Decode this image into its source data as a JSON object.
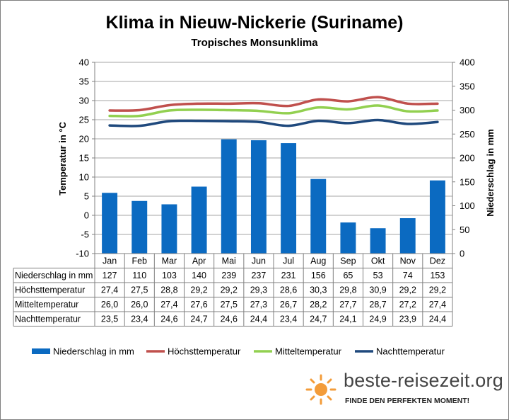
{
  "page": {
    "title": "Klima in Nieuw-Nickerie (Suriname)",
    "subtitle": "Tropisches Monsunklima"
  },
  "chart_data": {
    "type": "bar+line",
    "categories": [
      "Jan",
      "Feb",
      "Mar",
      "Apr",
      "Mai",
      "Jun",
      "Jul",
      "Aug",
      "Sep",
      "Okt",
      "Nov",
      "Dez"
    ],
    "y_left": {
      "label": "Temperatur in °C",
      "min": -10,
      "max": 40,
      "ticks": [
        -10,
        -5,
        0,
        5,
        10,
        15,
        20,
        25,
        30,
        35,
        40
      ]
    },
    "y_right": {
      "label": "Niederschlag in mm",
      "min": 0,
      "max": 400,
      "ticks": [
        0,
        50,
        100,
        150,
        200,
        250,
        300,
        350,
        400
      ]
    },
    "bars": {
      "name": "Niederschlag in mm",
      "axis": "right",
      "color": "#0b6ac1",
      "values": [
        127,
        110,
        103,
        140,
        239,
        237,
        231,
        156,
        65,
        53,
        74,
        153
      ]
    },
    "lines": [
      {
        "name": "Höchsttemperatur",
        "color": "#c0504d",
        "values": [
          27.4,
          27.5,
          28.8,
          29.2,
          29.2,
          29.3,
          28.6,
          30.3,
          29.8,
          30.9,
          29.2,
          29.2
        ]
      },
      {
        "name": "Mitteltemperatur",
        "color": "#92d050",
        "values": [
          26.0,
          26.0,
          27.4,
          27.6,
          27.5,
          27.3,
          26.7,
          28.2,
          27.7,
          28.7,
          27.2,
          27.4
        ]
      },
      {
        "name": "Nachttemperatur",
        "color": "#1f497d",
        "values": [
          23.5,
          23.4,
          24.6,
          24.7,
          24.6,
          24.4,
          23.4,
          24.7,
          24.1,
          24.9,
          23.9,
          24.4
        ]
      }
    ],
    "table": {
      "rows": [
        {
          "label": "Niederschlag in mm",
          "values": [
            "127",
            "110",
            "103",
            "140",
            "239",
            "237",
            "231",
            "156",
            "65",
            "53",
            "74",
            "153"
          ]
        },
        {
          "label": "Höchsttemperatur",
          "values": [
            "27,4",
            "27,5",
            "28,8",
            "29,2",
            "29,2",
            "29,3",
            "28,6",
            "30,3",
            "29,8",
            "30,9",
            "29,2",
            "29,2"
          ]
        },
        {
          "label": "Mitteltemperatur",
          "values": [
            "26,0",
            "26,0",
            "27,4",
            "27,6",
            "27,5",
            "27,3",
            "26,7",
            "28,2",
            "27,7",
            "28,7",
            "27,2",
            "27,4"
          ]
        },
        {
          "label": "Nachttemperatur",
          "values": [
            "23,5",
            "23,4",
            "24,6",
            "24,7",
            "24,6",
            "24,4",
            "23,4",
            "24,7",
            "24,1",
            "24,9",
            "23,9",
            "24,4"
          ]
        }
      ]
    },
    "legend": [
      "Niederschlag in mm",
      "Höchsttemperatur",
      "Mitteltemperatur",
      "Nachttemperatur"
    ]
  },
  "brand": {
    "name": "beste-reisezeit.org",
    "tagline": "FINDE DEN PERFEKTEN MOMENT!"
  }
}
